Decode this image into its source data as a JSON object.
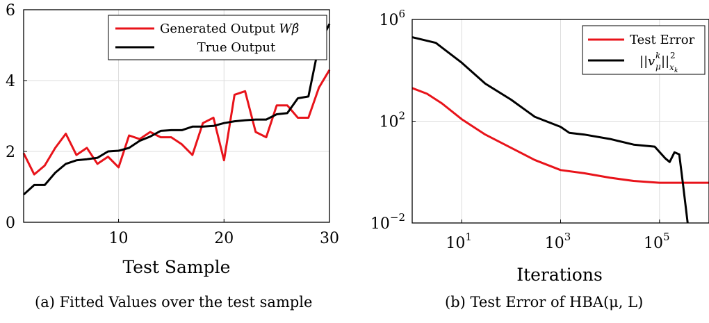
{
  "chart_data": [
    {
      "type": "line",
      "xlabel": "Test Sample",
      "ylabel": "",
      "xlim": [
        1,
        30
      ],
      "ylim": [
        0,
        6
      ],
      "xticks": [
        "10",
        "20",
        "30"
      ],
      "yticks": [
        "0",
        "2",
        "4",
        "6"
      ],
      "grid": true,
      "legend_position": "top-right",
      "caption": "(a)  Fitted Values over the test sample",
      "x": [
        1,
        2,
        3,
        4,
        5,
        6,
        7,
        8,
        9,
        10,
        11,
        12,
        13,
        14,
        15,
        16,
        17,
        18,
        19,
        20,
        21,
        22,
        23,
        24,
        25,
        26,
        27,
        28,
        29,
        30
      ],
      "series": [
        {
          "name": "Generated Output Wβ̂",
          "color": "#e8131a",
          "values": [
            1.95,
            1.35,
            1.6,
            2.1,
            2.5,
            1.9,
            2.1,
            1.65,
            1.85,
            1.55,
            2.45,
            2.35,
            2.55,
            2.4,
            2.4,
            2.2,
            1.9,
            2.8,
            2.95,
            1.75,
            3.6,
            3.7,
            2.55,
            2.4,
            3.3,
            3.3,
            2.95,
            2.95,
            3.8,
            4.3
          ]
        },
        {
          "name": "True Output",
          "color": "#000000",
          "values": [
            0.78,
            1.05,
            1.05,
            1.4,
            1.65,
            1.75,
            1.78,
            1.82,
            2.0,
            2.02,
            2.1,
            2.3,
            2.42,
            2.58,
            2.6,
            2.6,
            2.7,
            2.7,
            2.72,
            2.8,
            2.85,
            2.88,
            2.9,
            2.9,
            3.05,
            3.08,
            3.5,
            3.55,
            5.0,
            5.6
          ]
        }
      ]
    },
    {
      "type": "line",
      "xlabel": "Iterations",
      "ylabel": "",
      "xscale": "log",
      "yscale": "log",
      "xlim": [
        1,
        1000000
      ],
      "ylim": [
        0.01,
        1000000
      ],
      "xticks": [
        {
          "base": "10",
          "exp": "1"
        },
        {
          "base": "10",
          "exp": "3"
        },
        {
          "base": "10",
          "exp": "5"
        }
      ],
      "yticks": [
        {
          "base": "10",
          "exp": "−2"
        },
        {
          "base": "10",
          "exp": "2"
        },
        {
          "base": "10",
          "exp": "6"
        }
      ],
      "grid": true,
      "legend_position": "top-right",
      "caption": "(b)  Test Error of HBA(μ, L)",
      "series": [
        {
          "name": "Test Error",
          "color": "#e8131a",
          "x": [
            1,
            2,
            4,
            10,
            30,
            100,
            300,
            1000,
            3000,
            10000,
            30000,
            100000,
            200000,
            400000,
            1000000
          ],
          "y": [
            2000,
            1200,
            500,
            120,
            30,
            9,
            3,
            1.2,
            0.9,
            0.6,
            0.45,
            0.38,
            0.38,
            0.38,
            0.38
          ]
        },
        {
          "name": "‖v_μ^k‖²_{x_k}",
          "color": "#000000",
          "x": [
            1,
            3,
            10,
            30,
            100,
            300,
            1000,
            1500,
            3000,
            10000,
            30000,
            80000,
            130000,
            160000,
            200000,
            250000,
            300000,
            370000
          ],
          "y": [
            200000,
            120000,
            20000,
            3000,
            700,
            150,
            60,
            35,
            30,
            20,
            12,
            10,
            3.5,
            2.5,
            6,
            5,
            0.3,
            0.01
          ]
        }
      ]
    }
  ],
  "legend_a": {
    "series1_text": "Generated Output ",
    "series1_math": "Wβ̂",
    "series2_text": "True Output"
  },
  "legend_b": {
    "series1_text": "Test Error",
    "series2_norm_open": "||",
    "series2_v": "v",
    "series2_sup": "k",
    "series2_sub": "μ",
    "series2_norm_close": "||",
    "series2_sup2": "2",
    "series2_sub2": "x",
    "series2_sub2b": "k"
  }
}
